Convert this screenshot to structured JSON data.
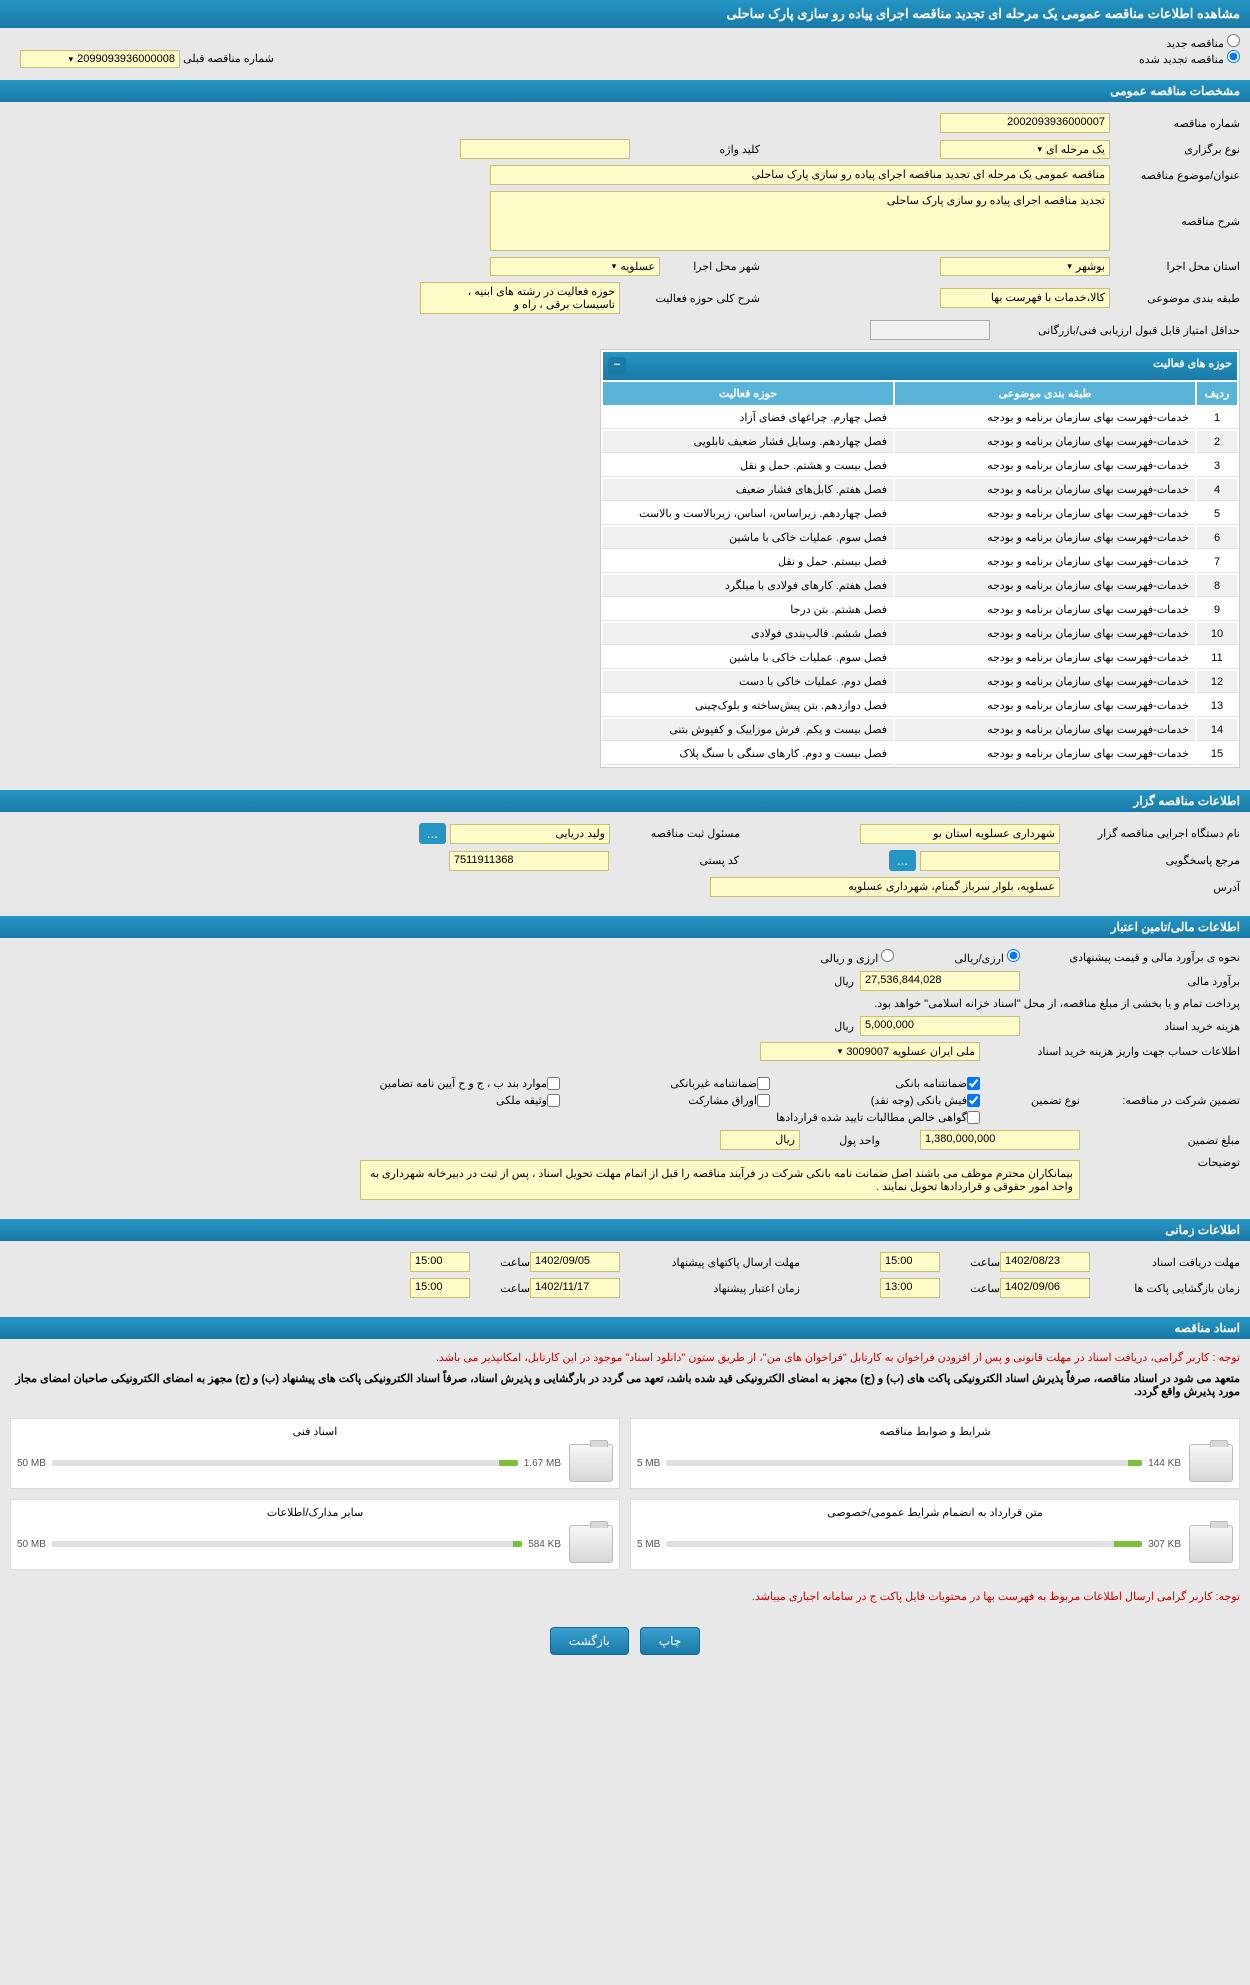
{
  "page_title": "مشاهده اطلاعات مناقصه عمومی یک مرحله ای تجدید مناقصه اجرای پیاده رو سازی پارک ساحلی",
  "radio": {
    "new": "مناقصه جدید",
    "renewed": "مناقصه تجدید شده",
    "checked": "renewed"
  },
  "prev_tender_label": "شماره مناقصه قبلی",
  "prev_tender_value": "2099093936000008",
  "section_general": "مشخصات مناقصه عمومی",
  "labels": {
    "tender_no": "شماره مناقصه",
    "hold_type": "نوع برگزاری",
    "keyword": "کلید واژه",
    "title": "عنوان/موضوع مناقصه",
    "desc": "شرح مناقصه",
    "province": "استان محل اجرا",
    "city": "شهر محل اجرا",
    "subject_cat": "طبقه بندی موضوعی",
    "activity_desc": "شرح کلی حوزه فعالیت",
    "min_score": "حداقل امتیاز قابل قبول ارزیابی فنی/بازرگانی"
  },
  "general": {
    "tender_no": "2002093936000007",
    "hold_type": "یک مرحله ای",
    "keyword": "",
    "title": "مناقصه عمومی یک مرحله ای تجدید مناقصه اجرای پیاده رو سازی پارک ساحلی",
    "desc": "تجدید مناقصه اجرای پیاده رو سازی پارک ساحلی",
    "province": "بوشهر",
    "city": "عسلویه",
    "subject_cat": "کالا،خدمات با فهرست بها",
    "activity_desc": "حوزه فعالیت در رشته های ابنیه ، تاسیسات برقی ، راه و",
    "min_score": ""
  },
  "activity_header": "حوزه های فعالیت",
  "activity_cols": {
    "row": "ردیف",
    "subject": "طبقه بندی موضوعی",
    "field": "حوزه فعالیت"
  },
  "activities": [
    {
      "n": 1,
      "subj": "خدمات-فهرست بهای سازمان برنامه و بودجه",
      "field": "فصل چهارم. چراغهای فضای آزاد"
    },
    {
      "n": 2,
      "subj": "خدمات-فهرست بهای سازمان برنامه و بودجه",
      "field": "فصل چهاردهم. وسایل فشار ضعیف تابلویی"
    },
    {
      "n": 3,
      "subj": "خدمات-فهرست بهای سازمان برنامه و بودجه",
      "field": "فصل بیست و هشتم. حمل و نقل"
    },
    {
      "n": 4,
      "subj": "خدمات-فهرست بهای سازمان برنامه و بودجه",
      "field": "فصل هفتم. کابل‌های فشار ضعیف"
    },
    {
      "n": 5,
      "subj": "خدمات-فهرست بهای سازمان برنامه و بودجه",
      "field": "فصل چهاردهم. زیراساس، اساس، زیربالاست و بالاست"
    },
    {
      "n": 6,
      "subj": "خدمات-فهرست بهای سازمان برنامه و بودجه",
      "field": "فصل سوم. عملیات خاکی با ماشین"
    },
    {
      "n": 7,
      "subj": "خدمات-فهرست بهای سازمان برنامه و بودجه",
      "field": "فصل بیستم. حمل و نقل"
    },
    {
      "n": 8,
      "subj": "خدمات-فهرست بهای سازمان برنامه و بودجه",
      "field": "فصل هفتم. کارهای فولادی با میلگرد"
    },
    {
      "n": 9,
      "subj": "خدمات-فهرست بهای سازمان برنامه و بودجه",
      "field": "فصل هشتم. بتن درجا"
    },
    {
      "n": 10,
      "subj": "خدمات-فهرست بهای سازمان برنامه و بودجه",
      "field": "فصل ششم. قالب‌بندی فولادی"
    },
    {
      "n": 11,
      "subj": "خدمات-فهرست بهای سازمان برنامه و بودجه",
      "field": "فصل سوم. عملیات خاکی با ماشین"
    },
    {
      "n": 12,
      "subj": "خدمات-فهرست بهای سازمان برنامه و بودجه",
      "field": "فصل دوم. عملیات خاکی با دست"
    },
    {
      "n": 13,
      "subj": "خدمات-فهرست بهای سازمان برنامه و بودجه",
      "field": "فصل دوازدهم. بتن پیش‌ساخته و بلوک‌چینی"
    },
    {
      "n": 14,
      "subj": "خدمات-فهرست بهای سازمان برنامه و بودجه",
      "field": "فصل بیست و یکم. فرش موزاییک و کفپوش بتنی"
    },
    {
      "n": 15,
      "subj": "خدمات-فهرست بهای سازمان برنامه و بودجه",
      "field": "فصل بیست و دوم. کارهای سنگی با سنگ پلاک"
    }
  ],
  "section_org": "اطلاعات مناقصه گزار",
  "org": {
    "agency_label": "نام دستگاه اجرایی مناقصه گزار",
    "agency": "شهرداری عسلویه استان بو",
    "registrar_label": "مسئول ثبت مناقصه",
    "registrar": "ولید دریایی",
    "responder_label": "مرجع پاسخگویی",
    "responder": "",
    "postal_label": "کد پستی",
    "postal": "7511911368",
    "address_label": "آدرس",
    "address": "عسلویه، بلوار سرباز گمنام، شهرداری عسلویه"
  },
  "section_fin": "اطلاعات مالی/تامین اعتبار",
  "fin": {
    "method_label": "نحوه ی برآورد مالی و قیمت پیشنهادی",
    "currency_rial": "ارزی/ریالی",
    "currency_foreign": "ارزی و ریالی",
    "estimate_label": "برآورد مالی",
    "estimate": "27,536,844,028",
    "unit_rial": "ريال",
    "payment_note": "پرداخت تمام و یا بخشی از مبلغ مناقصه، از محل \"اسناد خزانه اسلامی\" خواهد بود.",
    "doc_fee_label": "هزینه خرید اسناد",
    "doc_fee": "5,000,000",
    "account_label": "اطلاعات حساب جهت واریز هزینه خرید اسناد",
    "account": "ملی ایران عسلویه 3009007",
    "guarantee_title": "تضمین شرکت در مناقصه:",
    "guarantee_type_label": "نوع تضمین",
    "chk_bank": "ضمانتنامه بانکی",
    "chk_nonbank": "ضمانتنامه غیربانکی",
    "chk_bond": "موارد بند ب ، ج و ح آیین نامه تضامین",
    "chk_cash": "فیش بانکی (وجه نقد)",
    "chk_securities": "اوراق مشارکت",
    "chk_property": "وثیقه ملکی",
    "chk_claims": "گواهی خالص مطالبات تایید شده قراردادها",
    "amount_label": "مبلغ تضمین",
    "amount": "1,380,000,000",
    "money_unit_label": "واحد پول",
    "money_unit": "ريال",
    "desc_label": "توضیحات",
    "desc_text": "بیمانکاران محترم موظف می باشند اصل ضمانت نامه بانکی شرکت در فرآیند مناقصه را قبل از اتمام مهلت تحویل اسناد ، پس از ثبت در دبیرخانه شهرداری به واحد امور حقوقی و قراردادها تحویل نمایند ."
  },
  "section_time": "اطلاعات زمانی",
  "time": {
    "receive_label": "مهلت دریافت اسناد",
    "receive_date": "1402/08/23",
    "receive_time": "15:00",
    "hour_label": "ساعت",
    "send_label": "مهلت ارسال پاکتهای پیشنهاد",
    "send_date": "1402/09/05",
    "send_time": "15:00",
    "open_label": "زمان بازگشایی پاکت ها",
    "open_date": "1402/09/06",
    "open_time": "13:00",
    "valid_label": "زمان اعتبار پیشنهاد",
    "valid_date": "1402/11/17",
    "valid_time": "15:00"
  },
  "section_docs": "اسناد مناقصه",
  "doc_notice1": "توجه : کاربر گرامی، دریافت اسناد در مهلت قانونی و پس از افزودن فراخوان به کارتابل \"فراخوان های من\"، از طریق ستون \"دانلود اسناد\" موجود در این کارتابل، امکانپذیر می باشد.",
  "doc_notice2": "متعهد می شود در اسناد مناقصه، صرفاً پذیرش اسناد الکترونیکی پاکت های (ب) و (ج) مجهز به امضای الکترونیکی قید شده باشد، تعهد می گردد در بارگشایی و پذیرش اسناد، صرفاً اسناد الکترونیکی پاکت های پیشنهاد (ب) و (ج) مجهز به امضای الکترونیکی صاحبان امضای مجاز مورد پذیرش واقع گردد.",
  "docs": [
    {
      "title": "شرایط و ضوابط مناقصه",
      "size": "144 KB",
      "max": "5 MB",
      "fill": 3
    },
    {
      "title": "اسناد فنی",
      "size": "1.67 MB",
      "max": "50 MB",
      "fill": 4
    },
    {
      "title": "متن قرارداد به انضمام شرایط عمومی/خصوصی",
      "size": "307 KB",
      "max": "5 MB",
      "fill": 6
    },
    {
      "title": "سایر مدارک/اطلاعات",
      "size": "584 KB",
      "max": "50 MB",
      "fill": 2
    }
  ],
  "doc_notice3": "توجه: کاربر گرامی ارسال اطلاعات مربوط به فهرست بها در محتویات فایل پاکت ج در سامانه اجباری میباشد.",
  "btn_print": "چاپ",
  "btn_back": "بازگشت"
}
